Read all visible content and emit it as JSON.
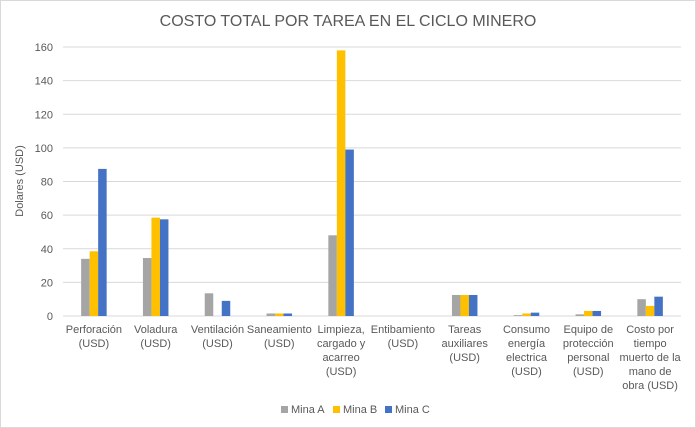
{
  "chart_data": {
    "type": "bar",
    "title": "COSTO TOTAL POR TAREA EN EL CICLO MINERO",
    "xlabel": "",
    "ylabel": "Dolares (USD)",
    "ylim": [
      0,
      160
    ],
    "yticks": [
      0,
      20,
      40,
      60,
      80,
      100,
      120,
      140,
      160
    ],
    "grid": true,
    "legend_position": "bottom",
    "categories": [
      [
        "Perforación",
        "(USD)"
      ],
      [
        "Voladura",
        "(USD)"
      ],
      [
        "Ventilación",
        "(USD)"
      ],
      [
        "Saneamiento",
        "(USD)"
      ],
      [
        "Limpieza,",
        "cargado y",
        "acarreo",
        "(USD)"
      ],
      [
        "Entibamiento",
        "(USD)"
      ],
      [
        "Tareas",
        "auxiliares",
        "(USD)"
      ],
      [
        "Consumo",
        "energía",
        "electrica",
        "(USD)"
      ],
      [
        "Equipo de",
        "protección",
        "personal",
        "(USD)"
      ],
      [
        "Costo por",
        "tiempo",
        "muerto de la",
        "mano de",
        "obra (USD)"
      ]
    ],
    "series": [
      {
        "name": "Mina A",
        "color": "#a5a5a5",
        "values": [
          34,
          34.5,
          13.5,
          1.5,
          48,
          0,
          12.5,
          0.5,
          1,
          10
        ]
      },
      {
        "name": "Mina B",
        "color": "#ffc000",
        "values": [
          38.5,
          58.5,
          0,
          1.5,
          158,
          0,
          12.5,
          1.5,
          3,
          6
        ]
      },
      {
        "name": "Mina C",
        "color": "#4472c4",
        "values": [
          87.5,
          57.5,
          9,
          1.5,
          99,
          0,
          12.5,
          2,
          3,
          11.5
        ]
      }
    ]
  }
}
